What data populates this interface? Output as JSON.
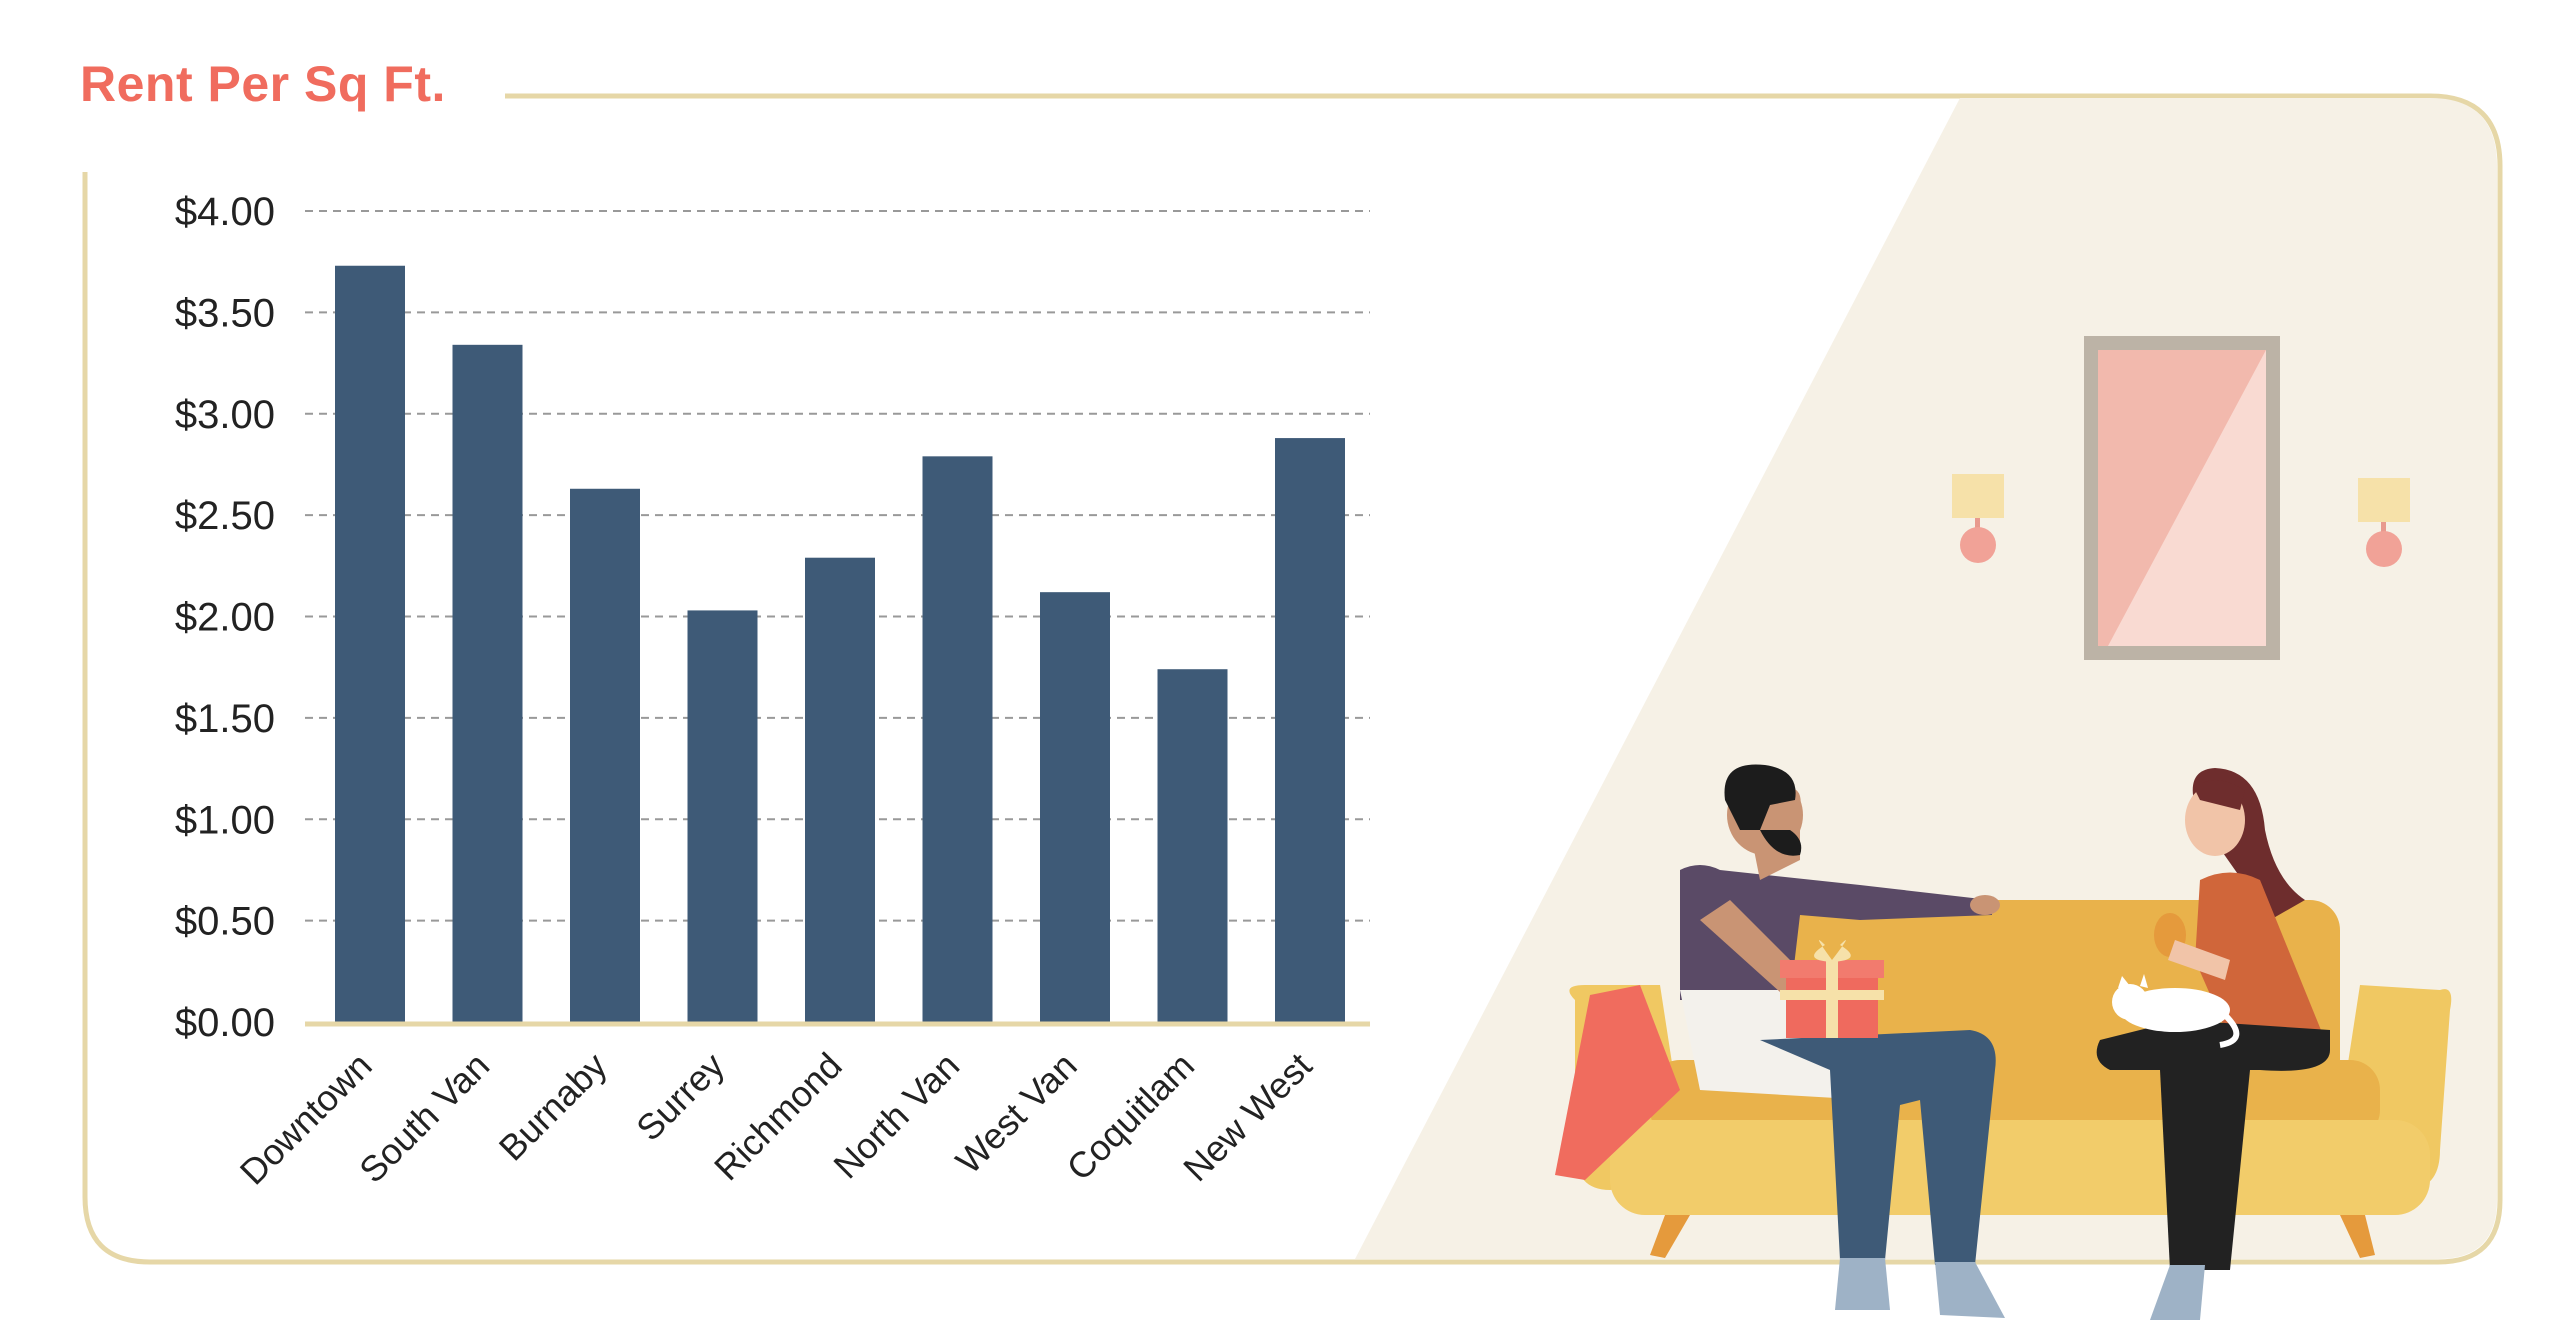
{
  "title": "Rent Per Sq Ft.",
  "colors": {
    "title": "#f06c5e",
    "bar": "#3e5a77",
    "frame": "#e6d7a7",
    "room_bg": "#f6f1e6",
    "sofa": "#f1c864",
    "sofa_shade": "#e4ae45"
  },
  "chart_data": {
    "type": "bar",
    "categories": [
      "Downtown",
      "South Van",
      "Burnaby",
      "Surrey",
      "Richmond",
      "North Van",
      "West Van",
      "Coquitlam",
      "New West"
    ],
    "values": [
      3.73,
      3.34,
      2.63,
      2.03,
      2.29,
      2.79,
      2.12,
      1.74,
      2.88
    ],
    "yticks": [
      "$0.00",
      "$0.50",
      "$1.00",
      "$1.50",
      "$2.00",
      "$2.50",
      "$3.00",
      "$3.50",
      "$4.00"
    ],
    "ylim": [
      0,
      4
    ],
    "grid": "dashed-horizontal",
    "title": "Rent Per Sq Ft.",
    "xlabel": "",
    "ylabel": ""
  },
  "illustration": {
    "description_icons": [
      "couple-on-sofa-illustration",
      "mirror-icon",
      "wall-lamp-icon",
      "gift-box-icon",
      "cat-icon"
    ]
  }
}
